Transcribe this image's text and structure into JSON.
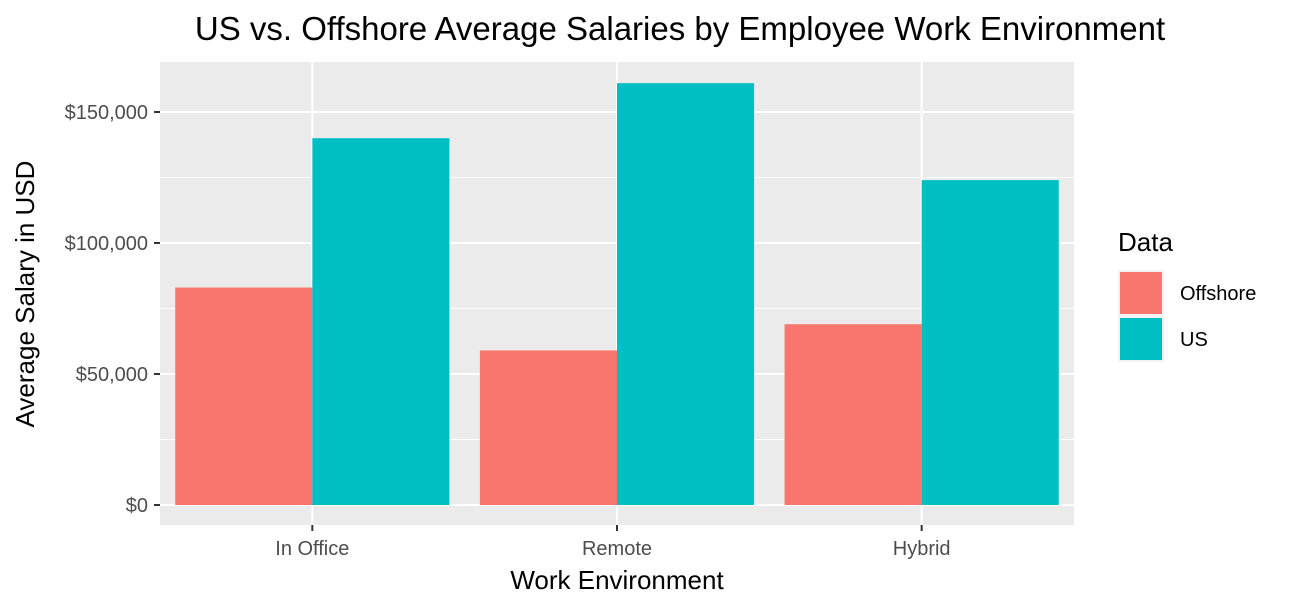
{
  "chart_data": {
    "type": "bar",
    "title": "US vs. Offshore Average Salaries by Employee Work Environment",
    "xlabel": "Work Environment",
    "ylabel": "Average Salary in USD",
    "categories": [
      "In Office",
      "Remote",
      "Hybrid"
    ],
    "series": [
      {
        "name": "Offshore",
        "color": "#F8766D",
        "values": [
          83000,
          59000,
          69000
        ]
      },
      {
        "name": "US",
        "color": "#00BFC4",
        "values": [
          140000,
          161000,
          124000
        ]
      }
    ],
    "ylim": [
      0,
      168000
    ],
    "yticks": [
      0,
      50000,
      100000,
      150000
    ],
    "ytick_labels": [
      "$0",
      "$50,000",
      "$100,000",
      "$150,000"
    ],
    "legend": {
      "title": "Data",
      "position": "right"
    },
    "grid": true
  }
}
